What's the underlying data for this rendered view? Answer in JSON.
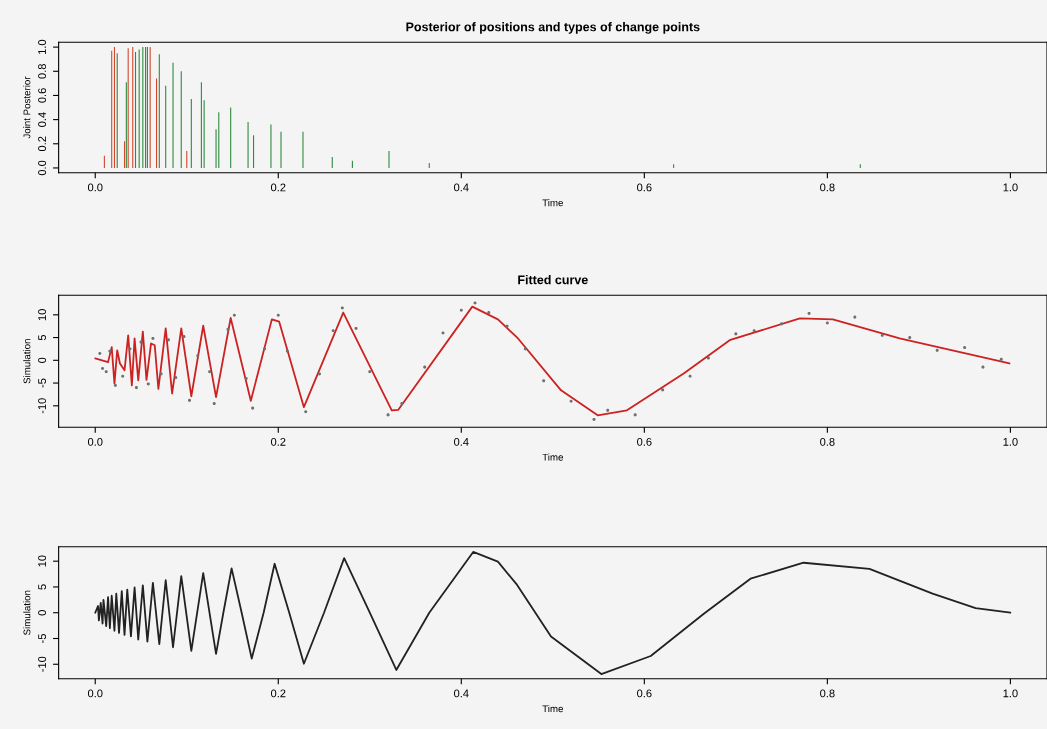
{
  "chart_data": [
    {
      "type": "bar",
      "title": "Posterior of positions and types of change points",
      "xlabel": "Time",
      "ylabel": "Joint Posterior",
      "xlim": [
        -0.04,
        1.04
      ],
      "ylim": [
        -0.04,
        1.04
      ],
      "xticks": [
        {
          "value": 0,
          "label": "0.0"
        },
        {
          "value": 0.2,
          "label": "0.2"
        },
        {
          "value": 0.4,
          "label": "0.4"
        },
        {
          "value": 0.6,
          "label": "0.6"
        },
        {
          "value": 0.8,
          "label": "0.8"
        },
        {
          "value": 1,
          "label": "1.0"
        }
      ],
      "yticks": [
        {
          "value": 0,
          "label": "0.0"
        },
        {
          "value": 0.2,
          "label": "0.2"
        },
        {
          "value": 0.4,
          "label": "0.4"
        },
        {
          "value": 0.6,
          "label": "0.6"
        },
        {
          "value": 0.8,
          "label": "0.8"
        },
        {
          "value": 1,
          "label": "1.0"
        }
      ],
      "grid": false,
      "legend": false,
      "series": [
        {
          "color": "#d0492f",
          "x": [
            0.01,
            0.018,
            0.021,
            0.032,
            0.036,
            0.041,
            0.06,
            0.067,
            0.1
          ],
          "values": [
            0.1,
            0.97,
            1.0,
            0.22,
            0.99,
            1.0,
            1.0,
            0.74,
            0.14
          ]
        },
        {
          "color": "#2e8b3e",
          "x": [
            0.024,
            0.034,
            0.044,
            0.048,
            0.052,
            0.055,
            0.057,
            0.07,
            0.077,
            0.085,
            0.094,
            0.105,
            0.116,
            0.119,
            0.132,
            0.135,
            0.148,
            0.167,
            0.173,
            0.192,
            0.203,
            0.227,
            0.259,
            0.281,
            0.321,
            0.365,
            0.632,
            0.836
          ],
          "values": [
            0.95,
            0.71,
            0.96,
            0.98,
            1.0,
            1.0,
            1.0,
            0.94,
            0.68,
            0.87,
            0.8,
            0.57,
            0.71,
            0.56,
            0.32,
            0.46,
            0.5,
            0.38,
            0.27,
            0.36,
            0.3,
            0.3,
            0.09,
            0.06,
            0.14,
            0.04,
            0.03,
            0.03
          ]
        }
      ]
    },
    {
      "type": "line",
      "title": "Fitted curve",
      "xlabel": "Time",
      "ylabel": "Simulation",
      "xlim": [
        -0.04,
        1.04
      ],
      "ylim": [
        -14.7,
        14.3
      ],
      "xticks": [
        {
          "value": 0,
          "label": "0.0"
        },
        {
          "value": 0.2,
          "label": "0.2"
        },
        {
          "value": 0.4,
          "label": "0.4"
        },
        {
          "value": 0.6,
          "label": "0.6"
        },
        {
          "value": 0.8,
          "label": "0.8"
        },
        {
          "value": 1,
          "label": "1.0"
        }
      ],
      "yticks": [
        -10,
        -5,
        0,
        5,
        10
      ],
      "grid": false,
      "legend": false,
      "series": [
        {
          "type": "scatter",
          "color": "#707070",
          "marker": "circle",
          "x": [
            0.005,
            0.008,
            0.012,
            0.016,
            0.022,
            0.03,
            0.038,
            0.045,
            0.05,
            0.058,
            0.063,
            0.072,
            0.08,
            0.088,
            0.097,
            0.103,
            0.112,
            0.125,
            0.13,
            0.145,
            0.152,
            0.165,
            0.172,
            0.185,
            0.2,
            0.21,
            0.23,
            0.245,
            0.26,
            0.27,
            0.285,
            0.3,
            0.32,
            0.335,
            0.36,
            0.38,
            0.4,
            0.415,
            0.43,
            0.45,
            0.47,
            0.49,
            0.52,
            0.545,
            0.56,
            0.59,
            0.62,
            0.65,
            0.67,
            0.7,
            0.72,
            0.75,
            0.78,
            0.8,
            0.83,
            0.86,
            0.89,
            0.92,
            0.95,
            0.97,
            0.99
          ],
          "values": [
            1.5,
            -1.8,
            -2.5,
            2.0,
            -5.5,
            -3.5,
            2.5,
            -6.0,
            4.0,
            -5.2,
            4.8,
            -3.0,
            4.5,
            -3.8,
            5.2,
            -8.8,
            1.0,
            -2.5,
            -9.5,
            6.8,
            9.9,
            -4.0,
            -10.5,
            2.5,
            9.9,
            2.0,
            -11.3,
            -3.0,
            6.5,
            11.5,
            7.0,
            -2.5,
            -12.0,
            -9.5,
            -1.5,
            6.0,
            11.0,
            12.6,
            10.5,
            7.5,
            2.5,
            -4.5,
            -9.0,
            -13.0,
            -11.0,
            -12.0,
            -6.5,
            -3.5,
            0.5,
            5.8,
            6.5,
            8.0,
            10.3,
            8.2,
            9.5,
            5.5,
            5.0,
            2.2,
            2.8,
            -1.5,
            0.2
          ]
        },
        {
          "color": "#cc2222",
          "line_style": "solid",
          "marker": "none",
          "x": [
            0,
            0.014,
            0.018,
            0.021,
            0.024,
            0.027,
            0.032,
            0.036,
            0.04,
            0.043,
            0.047,
            0.052,
            0.056,
            0.061,
            0.065,
            0.069,
            0.077,
            0.084,
            0.094,
            0.105,
            0.118,
            0.132,
            0.148,
            0.17,
            0.193,
            0.201,
            0.228,
            0.271,
            0.324,
            0.331,
            0.412,
            0.44,
            0.462,
            0.509,
            0.549,
            0.581,
            0.643,
            0.694,
            0.77,
            0.806,
            0.879,
            0.999
          ],
          "values": [
            0.4,
            -0.4,
            2.9,
            -5.1,
            2.2,
            -0.7,
            -2.2,
            5.5,
            -5.5,
            4.8,
            -4.4,
            6.3,
            -4.3,
            3.7,
            3.3,
            -6.3,
            7.0,
            -7.3,
            7.0,
            -7.9,
            7.6,
            -8.1,
            9.3,
            -8.9,
            9.0,
            8.5,
            -10.3,
            10.5,
            -11.0,
            -10.9,
            11.8,
            9.0,
            4.8,
            -6.6,
            -12.1,
            -11.0,
            -2.9,
            4.5,
            9.2,
            9.0,
            4.8,
            -0.7
          ]
        }
      ]
    },
    {
      "type": "line",
      "xlabel": "Time",
      "ylabel": "Simulation",
      "xlim": [
        -0.04,
        1.04
      ],
      "ylim": [
        -12.8,
        12.8
      ],
      "xticks": [
        {
          "value": 0,
          "label": "0.0"
        },
        {
          "value": 0.2,
          "label": "0.2"
        },
        {
          "value": 0.4,
          "label": "0.4"
        },
        {
          "value": 0.6,
          "label": "0.6"
        },
        {
          "value": 0.8,
          "label": "0.8"
        },
        {
          "value": 1,
          "label": "1.0"
        }
      ],
      "yticks": [
        -10,
        -5,
        0,
        5,
        10
      ],
      "grid": false,
      "legend": false,
      "series": [
        {
          "color": "#222222",
          "line_style": "solid",
          "marker": "none",
          "x": [
            0,
            0.003,
            0.004,
            0.006,
            0.008,
            0.009,
            0.012,
            0.014,
            0.016,
            0.018,
            0.021,
            0.023,
            0.026,
            0.029,
            0.032,
            0.035,
            0.039,
            0.043,
            0.047,
            0.052,
            0.057,
            0.063,
            0.07,
            0.077,
            0.085,
            0.094,
            0.105,
            0.118,
            0.132,
            0.14,
            0.149,
            0.16,
            0.171,
            0.184,
            0.196,
            0.212,
            0.228,
            0.25,
            0.272,
            0.3,
            0.329,
            0.365,
            0.413,
            0.44,
            0.461,
            0.498,
            0.553,
            0.607,
            0.665,
            0.716,
            0.774,
            0.846,
            0.915,
            0.962,
            1.0
          ],
          "values": [
            0,
            1.3,
            -1.5,
            1.9,
            -2.1,
            2.5,
            -2.6,
            3.0,
            -3.0,
            3.3,
            -3.5,
            3.7,
            -3.9,
            4.2,
            -4.3,
            4.5,
            -4.6,
            4.9,
            -5.2,
            5.3,
            -5.6,
            5.8,
            -6.1,
            6.3,
            -6.7,
            7.1,
            -7.4,
            7.7,
            -8.0,
            0,
            8.6,
            0,
            -8.9,
            0,
            9.5,
            0,
            -9.9,
            0,
            10.6,
            0,
            -11.1,
            0,
            11.8,
            9.9,
            5.4,
            -4.6,
            -11.9,
            -8.4,
            -0.2,
            6.6,
            9.7,
            8.5,
            3.7,
            0.9,
            0.0
          ]
        }
      ]
    }
  ]
}
